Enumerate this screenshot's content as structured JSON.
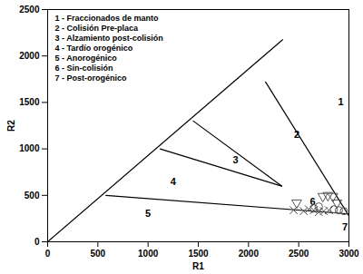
{
  "chart_data": {
    "type": "scatter",
    "x_label": "R1",
    "y_label": "R2",
    "xlim": [
      0,
      3000
    ],
    "ylim": [
      0,
      2500
    ],
    "xticks": [
      0,
      500,
      1000,
      1500,
      2000,
      2500,
      3000
    ],
    "yticks": [
      0,
      500,
      1000,
      1500,
      2000,
      2500
    ],
    "grid": false,
    "notes": [
      "1 - Fraccionados de manto",
      "2 - Colisión Pre-placa",
      "3 - Alzamiento post-colisión",
      "4 - Tardío orogénico",
      "5 - Anorogénico",
      "6 - Sin-colisión",
      "7 - Post-orogénico"
    ],
    "lines": [
      {
        "x": [
          0,
          2340
        ],
        "y": [
          0,
          2175
        ]
      },
      {
        "x": [
          2170,
          3000
        ],
        "y": [
          1720,
          280
        ]
      },
      {
        "x": [
          1450,
          2330
        ],
        "y": [
          1300,
          600
        ]
      },
      {
        "x": [
          1120,
          2330
        ],
        "y": [
          1000,
          600
        ]
      },
      {
        "x": [
          580,
          3000
        ],
        "y": [
          500,
          300
        ]
      }
    ],
    "annotations": [
      {
        "text": "1",
        "x": 2920,
        "y": 1500
      },
      {
        "text": "2",
        "x": 2480,
        "y": 1150
      },
      {
        "text": "3",
        "x": 1870,
        "y": 880
      },
      {
        "text": "4",
        "x": 1250,
        "y": 640
      },
      {
        "text": "5",
        "x": 1000,
        "y": 300
      },
      {
        "text": "6",
        "x": 2640,
        "y": 430
      },
      {
        "text": "7",
        "x": 2960,
        "y": 160
      }
    ],
    "series": [
      {
        "marker": "triangle-down",
        "color": "#555555",
        "x": [
          2480,
          2740,
          2790,
          2840,
          2880
        ],
        "values": [
          420,
          490,
          500,
          490,
          420
        ]
      },
      {
        "marker": "cross",
        "color": "#555555",
        "x": [
          2450,
          2550,
          2600,
          2650,
          2700,
          2750,
          2800
        ],
        "values": [
          340,
          330,
          350,
          340,
          320,
          330,
          340
        ]
      },
      {
        "marker": "circle",
        "color": "#555555",
        "x": [
          2650,
          2700,
          2850,
          2900,
          2950
        ],
        "values": [
          360,
          380,
          350,
          340,
          330
        ]
      }
    ]
  }
}
